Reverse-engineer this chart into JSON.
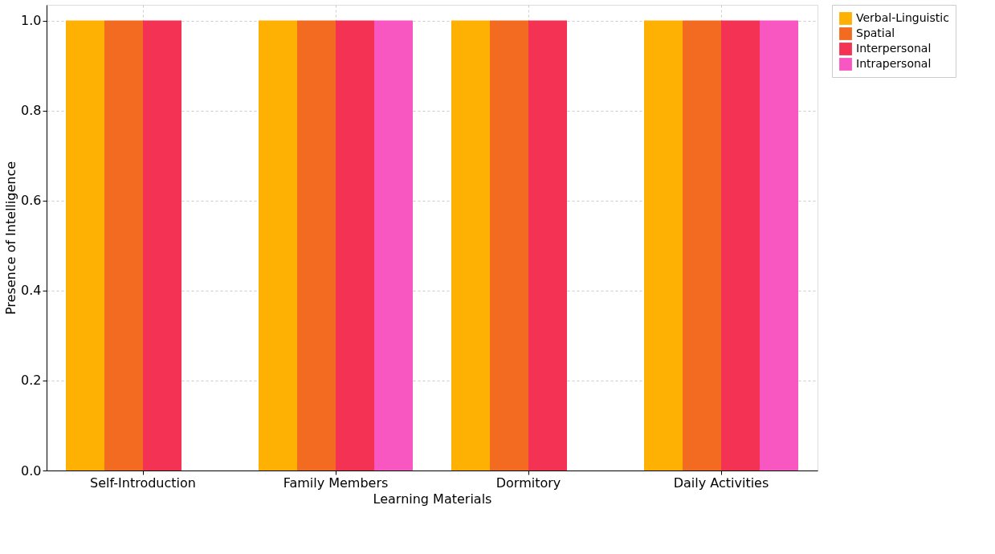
{
  "chart_data": {
    "type": "bar",
    "xlabel": "Learning Materials",
    "ylabel": "Presence of Intelligence",
    "categories": [
      "Self-Introduction",
      "Family Members",
      "Dormitory",
      "Daily Activities"
    ],
    "series": [
      {
        "name": "Verbal-Linguistic",
        "color": "#feb003",
        "values": [
          1,
          1,
          1,
          1
        ]
      },
      {
        "name": "Spatial",
        "color": "#f26b21",
        "values": [
          1,
          1,
          1,
          1
        ]
      },
      {
        "name": "Interpersonal",
        "color": "#f43254",
        "values": [
          1,
          1,
          1,
          1
        ]
      },
      {
        "name": "Intrapersonal",
        "color": "#f857c1",
        "values": [
          0,
          1,
          0,
          1
        ]
      }
    ],
    "ylim": [
      0,
      1.035
    ],
    "yticks": [
      {
        "value": 0,
        "label": "0.0"
      },
      {
        "value": 0.2,
        "label": "0.2"
      },
      {
        "value": 0.4,
        "label": "0.4"
      },
      {
        "value": 0.6,
        "label": "0.6"
      },
      {
        "value": 0.8,
        "label": "0.8"
      },
      {
        "value": 1,
        "label": "1.0"
      }
    ],
    "grid": true,
    "legend": "top right"
  }
}
